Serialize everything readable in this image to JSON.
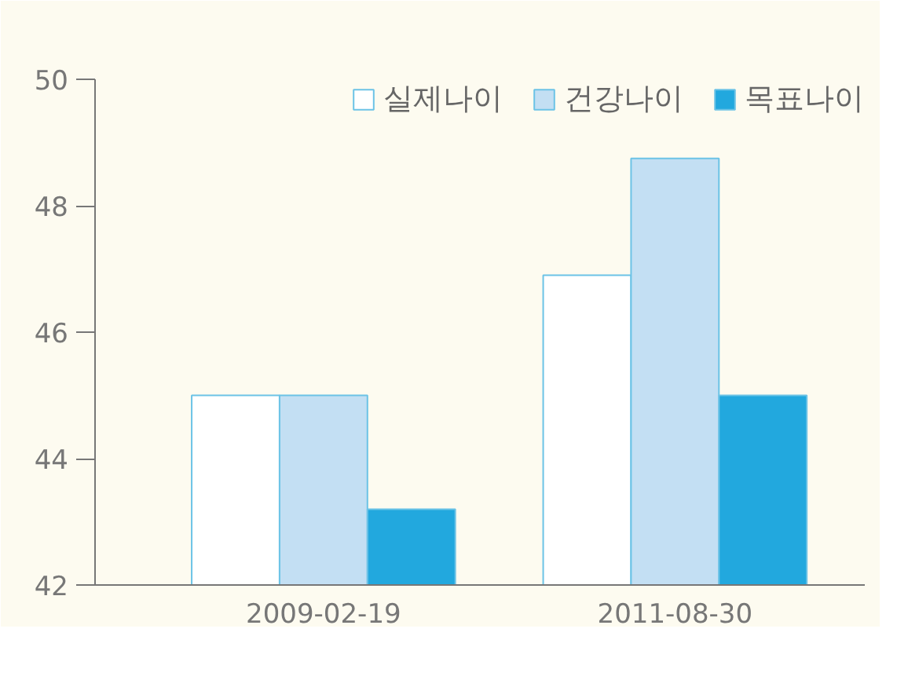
{
  "chart_data": {
    "type": "bar",
    "categories": [
      "2009-02-19",
      "2011-08-30"
    ],
    "series": [
      {
        "name": "실제나이",
        "color": "#ffffff",
        "values": [
          45.0,
          46.9
        ]
      },
      {
        "name": "건강나이",
        "color": "#c3dff3",
        "values": [
          45.0,
          48.75
        ]
      },
      {
        "name": "목표나이",
        "color": "#22a8de",
        "values": [
          43.2,
          45.0
        ]
      }
    ],
    "ylim": [
      42,
      50
    ],
    "yticks": [
      42,
      44,
      46,
      48,
      50
    ],
    "grid": false,
    "legend": "top right"
  }
}
